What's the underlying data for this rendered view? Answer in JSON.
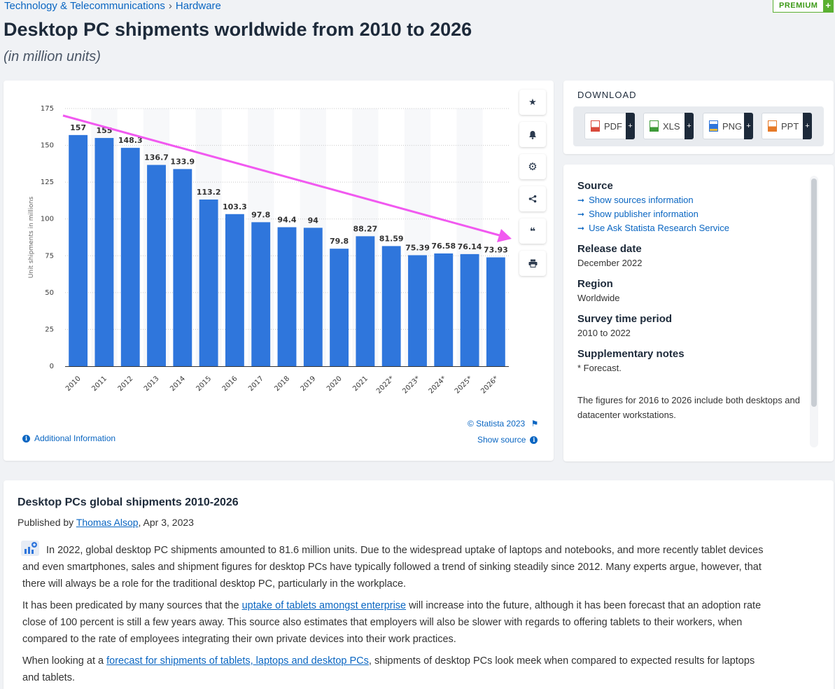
{
  "breadcrumb": {
    "category": "Technology & Telecommunications",
    "separator": "›",
    "subcategory": "Hardware"
  },
  "premium_badge": {
    "label": "PREMIUM",
    "plus": "+"
  },
  "page": {
    "title": "Desktop PC shipments worldwide from 2010 to 2026",
    "subtitle": "(in million units)"
  },
  "chart_data": {
    "type": "bar",
    "categories": [
      "2010",
      "2011",
      "2012",
      "2013",
      "2014",
      "2015",
      "2016",
      "2017",
      "2018",
      "2019",
      "2020",
      "2021",
      "2022*",
      "2023*",
      "2024*",
      "2025*",
      "2026*"
    ],
    "values": [
      157,
      155,
      148.3,
      136.7,
      133.9,
      113.2,
      103.3,
      97.8,
      94.4,
      94,
      79.8,
      88.27,
      81.59,
      75.39,
      76.58,
      76.14,
      73.93
    ],
    "value_labels": [
      "157",
      "155",
      "148.3",
      "136.7",
      "133.9",
      "113.2",
      "103.3",
      "97.8",
      "94.4",
      "94",
      "79.8",
      "88.27",
      "81.59",
      "75.39",
      "76.58",
      "76.14",
      "73.93"
    ],
    "ylabel": "Unit shipments in millions",
    "yticks": [
      "0",
      "25",
      "50",
      "75",
      "100",
      "125",
      "150",
      "175"
    ],
    "ylim": [
      0,
      175
    ],
    "grid": true,
    "bar_color": "#2f76dc",
    "annotation": {
      "type": "trend-arrow",
      "color": "#f159f0"
    }
  },
  "chart_footer": {
    "credit": "© Statista 2023",
    "additional_info": "Additional Information",
    "show_source": "Show source"
  },
  "toolbar": {
    "icons": [
      "star-icon",
      "bell-icon",
      "gear-icon",
      "share-icon",
      "quote-icon",
      "print-icon"
    ]
  },
  "download": {
    "title": "DOWNLOAD",
    "buttons": [
      {
        "label": "PDF",
        "color": "#d94a3c"
      },
      {
        "label": "XLS",
        "color": "#3f9b3a"
      },
      {
        "label": "PNG",
        "color": "#2f76dc"
      },
      {
        "label": "PPT",
        "color": "#e67a28"
      }
    ],
    "plus": "+"
  },
  "info": {
    "source_heading": "Source",
    "source_links": [
      "Show sources information",
      "Show publisher information",
      "Use Ask Statista Research Service"
    ],
    "release_heading": "Release date",
    "release_value": "December 2022",
    "region_heading": "Region",
    "region_value": "Worldwide",
    "survey_heading": "Survey time period",
    "survey_value": "2010 to 2022",
    "notes_heading": "Supplementary notes",
    "notes_value": "* Forecast.",
    "notes_extra": "The figures for 2016 to 2026 include both desktops and datacenter workstations."
  },
  "article": {
    "heading": "Desktop PCs global shipments 2010-2026",
    "published_prefix": "Published by ",
    "author": "Thomas Alsop",
    "published_date": ", Apr 3, 2023",
    "p1": "In 2022, global desktop PC shipments amounted to 81.6 million units. Due to the widespread uptake of laptops and notebooks, and more recently tablet devices and even smartphones, sales and shipment figures for desktop PCs have typically followed a trend of sinking steadily since 2012. Many experts argue, however, that there will always be a role for the traditional desktop PC, particularly in the workplace.",
    "p2_before": "It has been predicated by many sources that the ",
    "p2_link": "uptake of tablets amongst enterprise",
    "p2_after": " will increase into the future, although it has been forecast that an adoption rate close of 100 percent is still a few years away. This source also estimates that employers will also be slower with regards to offering tablets to their workers, when compared to the rate of employees integrating their own private devices into their work practices.",
    "p3_before": "When looking at a ",
    "p3_link": "forecast for shipments of tablets, laptops and desktop PCs",
    "p3_after": ", shipments of desktop PCs look meek when compared to expected results for laptops and tablets."
  }
}
